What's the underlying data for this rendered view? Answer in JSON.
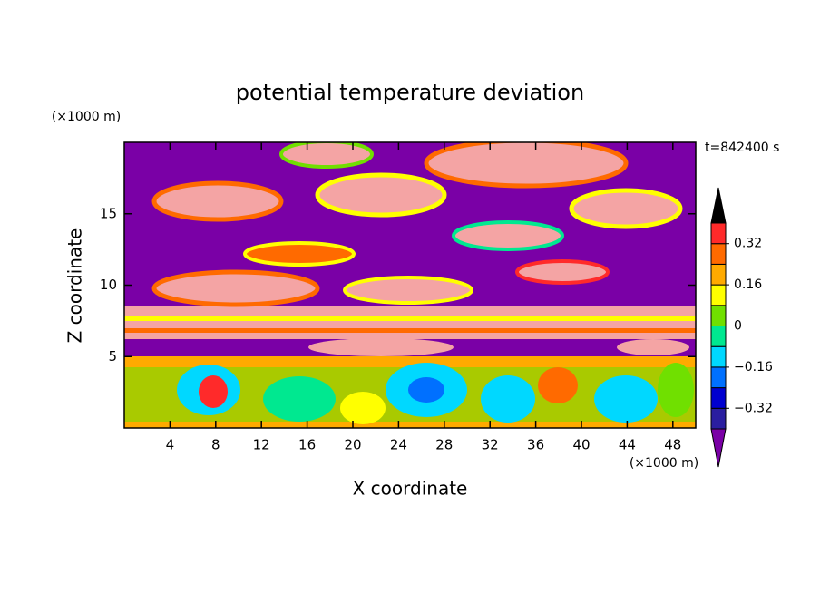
{
  "chart_data": {
    "type": "contour",
    "title": "potential temperature deviation",
    "x_label": "X coordinate",
    "y_label": "Z coordinate",
    "x_unit": "(×1000 m)",
    "y_unit": "(×1000 m)",
    "time_label": "t=842400 s",
    "xlim": [
      0,
      50
    ],
    "ylim": [
      0,
      20
    ],
    "xticks": [
      4,
      8,
      12,
      16,
      20,
      24,
      28,
      32,
      36,
      40,
      44,
      48
    ],
    "yticks": [
      5,
      10,
      15
    ],
    "levels": [
      -0.4,
      -0.32,
      -0.24,
      -0.16,
      -0.08,
      0,
      0.08,
      0.16,
      0.24,
      0.32,
      0.4
    ],
    "colors": [
      "#7a00a6",
      "#2a1ea0",
      "#0000d0",
      "#0070ff",
      "#00d8ff",
      "#00e890",
      "#70e000",
      "#ffff00",
      "#ffaa00",
      "#ff6a00",
      "#ff2a2a",
      "#f4a4a4"
    ],
    "colorbar_ticks": [
      {
        "value": -0.32,
        "label": "−0.32"
      },
      {
        "value": -0.16,
        "label": "−0.16"
      },
      0,
      0.16,
      0.32
    ]
  }
}
